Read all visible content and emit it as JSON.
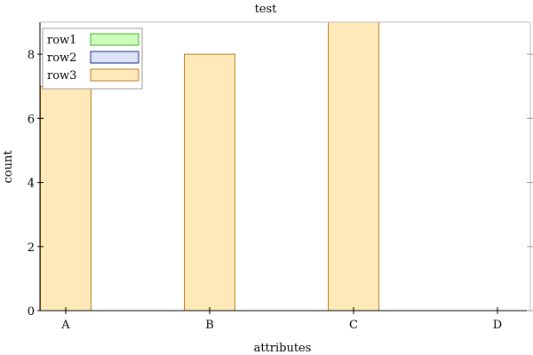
{
  "chart_data": {
    "type": "bar",
    "title": "test",
    "xlabel": "attributes",
    "ylabel": "count",
    "categories": [
      "A",
      "B",
      "C",
      "D"
    ],
    "ylim": [
      0,
      9
    ],
    "yticks": [
      0,
      2,
      4,
      6,
      8
    ],
    "grid": false,
    "legend_position": "top-left",
    "series": [
      {
        "name": "row1",
        "color": "#ccffbb",
        "stroke": "#44aa22",
        "values": [
          0,
          0,
          0,
          0
        ]
      },
      {
        "name": "row2",
        "color": "#dde4f7",
        "stroke": "#1a2a80",
        "values": [
          0,
          0,
          0,
          0
        ]
      },
      {
        "name": "row3",
        "color": "#ffe9b9",
        "stroke": "#bb7a1e",
        "values": [
          7,
          8,
          9,
          0
        ]
      }
    ]
  }
}
